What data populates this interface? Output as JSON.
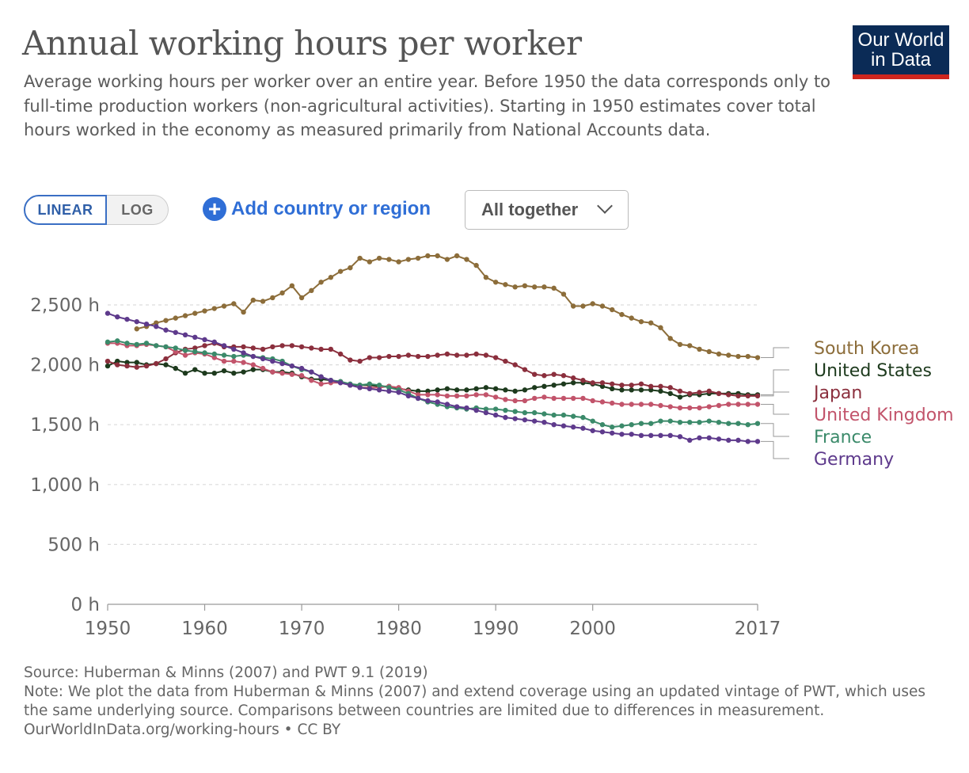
{
  "title": "Annual working hours per worker",
  "subtitle": "Average working hours per worker over an entire year. Before 1950 the data corresponds only to full-time production workers (non-agricultural activities). Starting in 1950 estimates cover total hours worked in the economy as measured primarily from National Accounts data.",
  "logo": {
    "line1": "Our World",
    "line2": "in Data"
  },
  "controls": {
    "linear_label": "LINEAR",
    "log_label": "LOG",
    "add_label": "Add country or region",
    "dropdown_label": "All together"
  },
  "footer": {
    "source": "Source: Huberman & Minns (2007) and PWT 9.1 (2019)",
    "note": "Note: We plot the data from Huberman & Minns (2007) and extend coverage using an updated vintage of PWT, which uses the same underlying source. Comparisons between countries are limited due to differences in measurement.",
    "url": "OurWorldInData.org/working-hours • CC BY"
  },
  "chart_data": {
    "type": "line",
    "xlim": [
      1950,
      2017
    ],
    "ylim": [
      0,
      2900
    ],
    "x_ticks": [
      1950,
      1960,
      1970,
      1980,
      1990,
      2000,
      2017
    ],
    "y_ticks": [
      0,
      500,
      1000,
      1500,
      2000,
      2500
    ],
    "y_tick_labels": [
      "0 h",
      "500 h",
      "1,000 h",
      "1,500 h",
      "2,000 h",
      "2,500 h"
    ],
    "grid": "horizontal dashed",
    "legend": "right (line-end labels)",
    "series": [
      {
        "name": "South Korea",
        "color": "#8c6d3a",
        "start": 1953,
        "values": [
          2300,
          2320,
          2350,
          2370,
          2390,
          2410,
          2430,
          2450,
          2470,
          2490,
          2510,
          2440,
          2540,
          2530,
          2560,
          2600,
          2660,
          2560,
          2620,
          2690,
          2730,
          2780,
          2810,
          2890,
          2860,
          2890,
          2880,
          2860,
          2880,
          2890,
          2910,
          2910,
          2880,
          2910,
          2880,
          2830,
          2730,
          2690,
          2670,
          2650,
          2660,
          2650,
          2650,
          2640,
          2590,
          2490,
          2490,
          2510,
          2490,
          2460,
          2420,
          2390,
          2360,
          2350,
          2310,
          2220,
          2170,
          2160,
          2130,
          2110,
          2090,
          2080,
          2070,
          2070,
          2060
        ]
      },
      {
        "name": "United States",
        "color": "#1d3a1d",
        "start": 1950,
        "values": [
          1990,
          2030,
          2020,
          2020,
          2000,
          2010,
          2000,
          1970,
          1930,
          1960,
          1930,
          1930,
          1950,
          1930,
          1940,
          1960,
          1960,
          1940,
          1940,
          1930,
          1900,
          1880,
          1880,
          1870,
          1860,
          1830,
          1830,
          1830,
          1820,
          1820,
          1800,
          1790,
          1780,
          1780,
          1790,
          1800,
          1790,
          1790,
          1800,
          1810,
          1800,
          1790,
          1780,
          1790,
          1810,
          1820,
          1830,
          1840,
          1850,
          1850,
          1840,
          1820,
          1800,
          1790,
          1790,
          1790,
          1790,
          1780,
          1760,
          1730,
          1750,
          1750,
          1760,
          1760,
          1760,
          1760,
          1750,
          1750
        ]
      },
      {
        "name": "Japan",
        "color": "#8b2f3d",
        "start": 1950,
        "values": [
          2030,
          2000,
          1990,
          1980,
          1990,
          2010,
          2050,
          2100,
          2130,
          2140,
          2160,
          2180,
          2150,
          2150,
          2150,
          2140,
          2130,
          2150,
          2160,
          2160,
          2150,
          2140,
          2130,
          2130,
          2090,
          2040,
          2030,
          2060,
          2060,
          2070,
          2070,
          2080,
          2070,
          2070,
          2080,
          2090,
          2080,
          2080,
          2090,
          2080,
          2060,
          2030,
          2000,
          1960,
          1920,
          1910,
          1920,
          1910,
          1890,
          1870,
          1850,
          1850,
          1840,
          1830,
          1830,
          1840,
          1820,
          1820,
          1810,
          1780,
          1760,
          1770,
          1780,
          1760,
          1750,
          1740,
          1740,
          1740
        ]
      },
      {
        "name": "United Kingdom",
        "color": "#c2546b",
        "start": 1950,
        "values": [
          2180,
          2180,
          2160,
          2160,
          2170,
          2160,
          2150,
          2110,
          2080,
          2100,
          2090,
          2060,
          2030,
          2030,
          2020,
          2000,
          1970,
          1940,
          1930,
          1920,
          1910,
          1870,
          1840,
          1850,
          1850,
          1830,
          1810,
          1810,
          1810,
          1820,
          1810,
          1780,
          1750,
          1750,
          1750,
          1740,
          1740,
          1740,
          1750,
          1750,
          1730,
          1710,
          1700,
          1700,
          1720,
          1730,
          1720,
          1720,
          1720,
          1720,
          1700,
          1690,
          1680,
          1670,
          1670,
          1670,
          1670,
          1660,
          1650,
          1640,
          1640,
          1640,
          1650,
          1660,
          1670,
          1670,
          1670,
          1670
        ]
      },
      {
        "name": "France",
        "color": "#3b8a6a",
        "start": 1950,
        "values": [
          2190,
          2200,
          2180,
          2170,
          2180,
          2160,
          2150,
          2140,
          2120,
          2110,
          2100,
          2090,
          2080,
          2070,
          2080,
          2070,
          2060,
          2050,
          2030,
          1990,
          1960,
          1940,
          1900,
          1870,
          1860,
          1840,
          1830,
          1840,
          1830,
          1810,
          1790,
          1760,
          1720,
          1690,
          1670,
          1650,
          1640,
          1630,
          1640,
          1630,
          1630,
          1620,
          1610,
          1600,
          1600,
          1590,
          1580,
          1580,
          1570,
          1560,
          1530,
          1500,
          1480,
          1490,
          1500,
          1510,
          1510,
          1530,
          1530,
          1520,
          1520,
          1520,
          1530,
          1520,
          1510,
          1510,
          1500,
          1510
        ]
      },
      {
        "name": "Germany",
        "color": "#5e3a8c",
        "start": 1950,
        "values": [
          2430,
          2400,
          2380,
          2360,
          2340,
          2320,
          2290,
          2270,
          2250,
          2230,
          2210,
          2190,
          2160,
          2130,
          2100,
          2070,
          2050,
          2030,
          2010,
          1990,
          1970,
          1940,
          1900,
          1870,
          1850,
          1830,
          1810,
          1800,
          1790,
          1780,
          1770,
          1740,
          1720,
          1700,
          1690,
          1670,
          1650,
          1640,
          1620,
          1600,
          1580,
          1560,
          1550,
          1540,
          1530,
          1520,
          1500,
          1490,
          1480,
          1470,
          1450,
          1440,
          1430,
          1420,
          1420,
          1410,
          1410,
          1410,
          1410,
          1400,
          1370,
          1390,
          1390,
          1380,
          1370,
          1370,
          1360,
          1360
        ]
      }
    ]
  }
}
